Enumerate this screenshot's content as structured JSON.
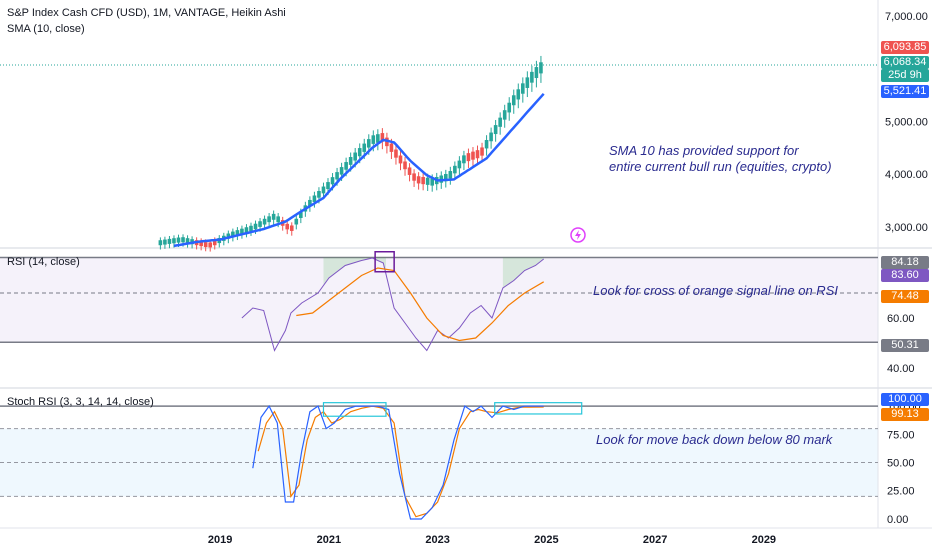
{
  "header": {
    "symbol_line": "S&P Index Cash CFD (USD), 1M, VANTAGE, Heikin Ashi",
    "sma_label": "SMA (10, close)",
    "rsi_label": "RSI (14, close)",
    "stoch_label": "Stoch RSI (3, 3, 14, 14, close)"
  },
  "annotations": {
    "sma_line1": "SMA 10 has provided support for",
    "sma_line2": "entire current bull run (equities, crypto)",
    "rsi_note": "Look for cross of orange signal line on RSI",
    "stoch_note": "Look for move back down below 80 mark"
  },
  "price_tags": {
    "tag1": "6,093.85",
    "tag2": "6,068.34",
    "countdown": "25d 9h",
    "sma_value": "5,521.41"
  },
  "rsi_tags": {
    "upper": "84.18",
    "rsi": "83.60",
    "signal": "74.48",
    "lower": "50.31"
  },
  "stoch_tags": {
    "k": "100.00",
    "d": "99.13"
  },
  "colors": {
    "bull": "#26a69a",
    "bear": "#ef5350",
    "sma": "#2962ff",
    "rsi_line": "#7e57c2",
    "rsi_signal": "#f57c00",
    "stoch_k": "#2962ff",
    "stoch_d": "#f57c00",
    "annotation": "#2a2b8f",
    "box_purple": "#6a1b9a",
    "box_cyan": "#26c6da"
  },
  "chart_data": [
    {
      "type": "candlestick",
      "title": "S&P Index Cash CFD (USD), 1M, VANTAGE, Heikin Ashi",
      "y_ticks": [
        "3,000.00",
        "4,000.00",
        "5,000.00",
        "6,000.00",
        "7,000.00"
      ],
      "y_tick_values": [
        3000,
        4000,
        5000,
        6000,
        7000
      ],
      "ylim": [
        2600,
        7300
      ],
      "x_ticks": [
        "2019",
        "2021",
        "2023",
        "2025",
        "2027",
        "2029"
      ],
      "x_tick_values": [
        2019,
        2021,
        2023,
        2025,
        2027,
        2029
      ],
      "xlim": [
        2014.95,
        2031.1
      ],
      "open_candle_x": [
        2016.9,
        2017.2
      ],
      "sma_series": {
        "name": "SMA (10, close)",
        "x": [
          2018.15,
          2018.6,
          2019.0,
          2019.4,
          2019.8,
          2020.2,
          2020.5,
          2020.9,
          2021.2,
          2021.5,
          2021.8,
          2022.0,
          2022.2,
          2022.5,
          2022.8,
          2023.0,
          2023.3,
          2023.6,
          2023.9,
          2024.2,
          2024.5,
          2024.8,
          2024.95
        ],
        "values": [
          2640,
          2720,
          2760,
          2860,
          2960,
          3100,
          3300,
          3550,
          3900,
          4200,
          4500,
          4650,
          4600,
          4250,
          3980,
          3880,
          3900,
          4100,
          4300,
          4650,
          5000,
          5350,
          5521.41
        ]
      },
      "price_labels": [
        "6,093.85",
        "6,068.34",
        "5,521.41"
      ],
      "grid": false
    },
    {
      "type": "line",
      "title": "RSI (14, close)",
      "y_ticks": [
        "40.00",
        "60.00",
        "80.00"
      ],
      "y_tick_values": [
        40,
        60,
        80
      ],
      "ylim": [
        32,
        88
      ],
      "bands": [
        50.31,
        84.18
      ],
      "series": [
        {
          "name": "RSI (14, close)",
          "x": [
            2019.4,
            2019.6,
            2019.8,
            2020.0,
            2020.2,
            2020.3,
            2020.5,
            2020.8,
            2021.0,
            2021.3,
            2021.6,
            2021.8,
            2022.0,
            2022.2,
            2022.4,
            2022.6,
            2022.8,
            2023.0,
            2023.2,
            2023.4,
            2023.6,
            2023.8,
            2024.0,
            2024.2,
            2024.4,
            2024.6,
            2024.8,
            2024.95
          ],
          "values": [
            60,
            64,
            63,
            47,
            55,
            62,
            66,
            70,
            76,
            81,
            83,
            84,
            82,
            64,
            58,
            52,
            47,
            55,
            52,
            56,
            62,
            65,
            60,
            72,
            75,
            79,
            81,
            83.6
          ]
        },
        {
          "name": "Signal",
          "x": [
            2020.4,
            2020.7,
            2021.0,
            2021.3,
            2021.6,
            2021.9,
            2022.2,
            2022.5,
            2022.8,
            2023.1,
            2023.4,
            2023.7,
            2024.0,
            2024.3,
            2024.6,
            2024.95
          ],
          "values": [
            61,
            62,
            67,
            72,
            77,
            80,
            79,
            70,
            60,
            53,
            51,
            52,
            58,
            65,
            70,
            74.48
          ]
        }
      ]
    },
    {
      "type": "line",
      "title": "Stoch RSI (3, 3, 14, 14, close)",
      "y_ticks": [
        "0.00",
        "25.00",
        "50.00",
        "75.00",
        "100.00"
      ],
      "y_tick_values": [
        0,
        25,
        50,
        75,
        100
      ],
      "ylim": [
        -8,
        116
      ],
      "bands": [
        20,
        80
      ],
      "series": [
        {
          "name": "%K",
          "x": [
            2019.6,
            2019.75,
            2019.9,
            2020.05,
            2020.2,
            2020.35,
            2020.5,
            2020.65,
            2020.8,
            2020.95,
            2021.1,
            2021.3,
            2021.5,
            2021.7,
            2021.9,
            2022.1,
            2022.3,
            2022.5,
            2022.7,
            2022.9,
            2023.1,
            2023.3,
            2023.5,
            2023.65,
            2023.8,
            2024.0,
            2024.2,
            2024.4,
            2024.6,
            2024.8,
            2024.95
          ],
          "values": [
            45,
            90,
            100,
            85,
            15,
            15,
            60,
            95,
            100,
            80,
            85,
            97,
            100,
            100,
            100,
            97,
            40,
            0,
            0,
            10,
            30,
            70,
            100,
            95,
            100,
            90,
            100,
            97,
            100,
            100,
            100
          ]
        },
        {
          "name": "%D",
          "x": [
            2019.7,
            2019.85,
            2020.0,
            2020.15,
            2020.3,
            2020.45,
            2020.6,
            2020.75,
            2020.9,
            2021.05,
            2021.2,
            2021.4,
            2021.6,
            2021.8,
            2022.0,
            2022.2,
            2022.4,
            2022.6,
            2022.8,
            2023.0,
            2023.2,
            2023.4,
            2023.6,
            2023.75,
            2023.9,
            2024.1,
            2024.3,
            2024.5,
            2024.7,
            2024.95
          ],
          "values": [
            60,
            85,
            95,
            80,
            20,
            30,
            70,
            90,
            95,
            85,
            88,
            95,
            98,
            100,
            98,
            85,
            20,
            2,
            5,
            15,
            40,
            80,
            95,
            97,
            95,
            94,
            97,
            99,
            99,
            99.13
          ]
        }
      ]
    }
  ]
}
